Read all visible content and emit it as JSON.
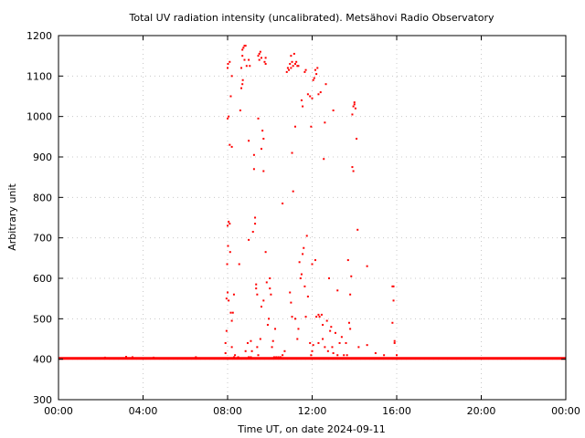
{
  "chart_data": {
    "type": "scatter",
    "title": "Total UV radiation intensity (uncalibrated). Metsähovi Radio Observatory",
    "xlabel": "Time UT, on date 2024-09-11",
    "ylabel": "Arbitrary unit",
    "xlim_hours": [
      0,
      24
    ],
    "ylim": [
      300,
      1200
    ],
    "x_ticks": [
      {
        "hour": 0,
        "label": "00:00"
      },
      {
        "hour": 4,
        "label": "04:00"
      },
      {
        "hour": 8,
        "label": "08:00"
      },
      {
        "hour": 12,
        "label": "12:00"
      },
      {
        "hour": 16,
        "label": "16:00"
      },
      {
        "hour": 20,
        "label": "20:00"
      },
      {
        "hour": 24,
        "label": "00:00"
      }
    ],
    "y_ticks": [
      300,
      400,
      500,
      600,
      700,
      800,
      900,
      1000,
      1100,
      1200
    ],
    "grid": true,
    "marker_color": "#ff0000",
    "series": [
      {
        "baseline": {
          "value": 402,
          "from_hour": 0,
          "to_hour": 24
        },
        "points": [
          [
            7.9,
            415
          ],
          [
            7.9,
            440
          ],
          [
            7.95,
            470
          ],
          [
            7.95,
            550
          ],
          [
            8.0,
            565
          ],
          [
            7.98,
            635
          ],
          [
            8.02,
            680
          ],
          [
            8.0,
            730
          ],
          [
            8.05,
            740
          ],
          [
            8.1,
            735
          ],
          [
            8.12,
            665
          ],
          [
            8.0,
            995
          ],
          [
            8.05,
            1000
          ],
          [
            8.0,
            1120
          ],
          [
            8.02,
            1130
          ],
          [
            8.1,
            1135
          ],
          [
            8.1,
            930
          ],
          [
            8.15,
            1050
          ],
          [
            8.2,
            925
          ],
          [
            8.2,
            1100
          ],
          [
            8.05,
            545
          ],
          [
            8.15,
            515
          ],
          [
            8.2,
            495
          ],
          [
            8.25,
            515
          ],
          [
            8.3,
            560
          ],
          [
            8.2,
            430
          ],
          [
            8.3,
            405
          ],
          [
            8.35,
            410
          ],
          [
            8.5,
            405
          ],
          [
            8.55,
            635
          ],
          [
            8.6,
            1015
          ],
          [
            8.65,
            1070
          ],
          [
            8.7,
            1080
          ],
          [
            8.72,
            1090
          ],
          [
            8.7,
            1150
          ],
          [
            8.7,
            1165
          ],
          [
            8.75,
            1170
          ],
          [
            8.8,
            1175
          ],
          [
            8.8,
            1140
          ],
          [
            8.85,
            1175
          ],
          [
            8.65,
            1120
          ],
          [
            8.9,
            1125
          ],
          [
            9.0,
            1140
          ],
          [
            9.05,
            1125
          ],
          [
            9.0,
            940
          ],
          [
            9.0,
            695
          ],
          [
            9.1,
            405
          ],
          [
            9.1,
            445
          ],
          [
            9.15,
            420
          ],
          [
            9.2,
            715
          ],
          [
            9.25,
            870
          ],
          [
            9.25,
            905
          ],
          [
            9.3,
            750
          ],
          [
            9.3,
            735
          ],
          [
            9.35,
            575
          ],
          [
            9.35,
            585
          ],
          [
            9.4,
            560
          ],
          [
            9.45,
            995
          ],
          [
            9.45,
            1150
          ],
          [
            9.5,
            1140
          ],
          [
            9.5,
            1155
          ],
          [
            9.55,
            1160
          ],
          [
            9.6,
            1145
          ],
          [
            9.6,
            920
          ],
          [
            9.65,
            965
          ],
          [
            9.7,
            945
          ],
          [
            9.7,
            865
          ],
          [
            9.75,
            1135
          ],
          [
            9.8,
            1130
          ],
          [
            9.8,
            1145
          ],
          [
            9.8,
            665
          ],
          [
            9.85,
            590
          ],
          [
            9.9,
            485
          ],
          [
            9.95,
            500
          ],
          [
            10.0,
            575
          ],
          [
            10.0,
            600
          ],
          [
            10.05,
            560
          ],
          [
            10.1,
            430
          ],
          [
            10.15,
            445
          ],
          [
            10.2,
            405
          ],
          [
            10.25,
            475
          ],
          [
            9.55,
            450
          ],
          [
            9.6,
            530
          ],
          [
            9.7,
            545
          ],
          [
            9.4,
            430
          ],
          [
            9.45,
            410
          ],
          [
            8.85,
            420
          ],
          [
            8.95,
            440
          ],
          [
            9.0,
            405
          ],
          [
            10.3,
            405
          ],
          [
            10.4,
            405
          ],
          [
            10.5,
            405
          ],
          [
            10.6,
            410
          ],
          [
            10.7,
            420
          ],
          [
            10.6,
            785
          ],
          [
            10.8,
            1110
          ],
          [
            10.85,
            1120
          ],
          [
            10.9,
            1115
          ],
          [
            10.95,
            1130
          ],
          [
            11.0,
            1120
          ],
          [
            11.0,
            1150
          ],
          [
            11.05,
            1135
          ],
          [
            11.1,
            1125
          ],
          [
            11.15,
            1155
          ],
          [
            11.2,
            1130
          ],
          [
            11.25,
            1135
          ],
          [
            11.3,
            1125
          ],
          [
            11.35,
            1125
          ],
          [
            11.05,
            910
          ],
          [
            11.1,
            815
          ],
          [
            11.2,
            975
          ],
          [
            10.95,
            565
          ],
          [
            11.0,
            540
          ],
          [
            11.05,
            505
          ],
          [
            11.2,
            500
          ],
          [
            11.3,
            450
          ],
          [
            11.35,
            475
          ],
          [
            11.4,
            640
          ],
          [
            11.45,
            600
          ],
          [
            11.5,
            610
          ],
          [
            11.55,
            660
          ],
          [
            11.6,
            675
          ],
          [
            11.65,
            580
          ],
          [
            11.7,
            505
          ],
          [
            11.75,
            705
          ],
          [
            11.8,
            555
          ],
          [
            11.5,
            1040
          ],
          [
            11.55,
            1025
          ],
          [
            11.65,
            1110
          ],
          [
            11.7,
            1115
          ],
          [
            11.8,
            1055
          ],
          [
            11.9,
            1050
          ],
          [
            11.95,
            975
          ],
          [
            12.0,
            1045
          ],
          [
            12.05,
            1090
          ],
          [
            12.1,
            1095
          ],
          [
            12.15,
            1115
          ],
          [
            12.2,
            1105
          ],
          [
            12.25,
            1120
          ],
          [
            12.3,
            1055
          ],
          [
            12.4,
            1060
          ],
          [
            12.0,
            635
          ],
          [
            12.15,
            645
          ],
          [
            12.2,
            505
          ],
          [
            12.3,
            510
          ],
          [
            12.35,
            505
          ],
          [
            12.45,
            510
          ],
          [
            12.5,
            485
          ],
          [
            12.55,
            895
          ],
          [
            12.6,
            985
          ],
          [
            12.65,
            1080
          ],
          [
            12.7,
            495
          ],
          [
            12.8,
            600
          ],
          [
            12.85,
            470
          ],
          [
            12.9,
            480
          ],
          [
            12.95,
            430
          ],
          [
            13.0,
            1015
          ],
          [
            13.1,
            465
          ],
          [
            13.2,
            570
          ],
          [
            13.3,
            440
          ],
          [
            13.4,
            455
          ],
          [
            11.9,
            440
          ],
          [
            11.95,
            410
          ],
          [
            12.0,
            420
          ],
          [
            12.05,
            435
          ],
          [
            12.3,
            440
          ],
          [
            12.5,
            450
          ],
          [
            12.6,
            430
          ],
          [
            12.75,
            420
          ],
          [
            13.0,
            415
          ],
          [
            13.2,
            410
          ],
          [
            13.5,
            410
          ],
          [
            13.6,
            440
          ],
          [
            13.65,
            410
          ],
          [
            13.7,
            645
          ],
          [
            13.75,
            490
          ],
          [
            13.8,
            475
          ],
          [
            13.8,
            560
          ],
          [
            13.85,
            605
          ],
          [
            13.9,
            1005
          ],
          [
            13.95,
            1025
          ],
          [
            14.0,
            1030
          ],
          [
            14.0,
            1035
          ],
          [
            13.9,
            875
          ],
          [
            13.95,
            865
          ],
          [
            14.05,
            1020
          ],
          [
            14.1,
            945
          ],
          [
            14.15,
            720
          ],
          [
            14.2,
            430
          ],
          [
            14.6,
            630
          ],
          [
            14.6,
            435
          ],
          [
            15.0,
            415
          ],
          [
            15.4,
            410
          ],
          [
            15.8,
            580
          ],
          [
            15.85,
            580
          ],
          [
            15.85,
            545
          ],
          [
            15.8,
            490
          ],
          [
            15.9,
            445
          ],
          [
            15.9,
            440
          ],
          [
            16.0,
            410
          ],
          [
            6.5,
            405
          ],
          [
            3.2,
            406
          ],
          [
            3.5,
            405
          ],
          [
            4.5,
            404
          ],
          [
            2.2,
            404
          ]
        ]
      }
    ]
  }
}
